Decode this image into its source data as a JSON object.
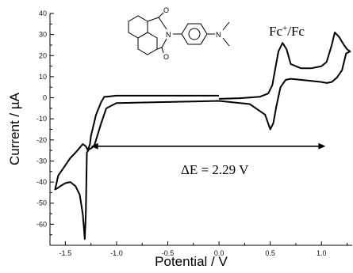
{
  "chart_data": {
    "type": "line",
    "xlabel": "Potential / V",
    "ylabel": "Current / µA",
    "xlim": [
      -1.65,
      1.3
    ],
    "ylim": [
      -70,
      40
    ],
    "xticks": [
      -1.5,
      -1.0,
      -0.5,
      0.0,
      0.5,
      1.0
    ],
    "xtick_labels": [
      "-1.5",
      "-1.0",
      "-0.5",
      "0.0",
      "0.5",
      "1.0"
    ],
    "yticks": [
      -60,
      -50,
      -40,
      -30,
      -20,
      -10,
      0,
      10,
      20,
      30,
      40
    ],
    "ytick_labels": [
      "-60",
      "-50",
      "-40",
      "-30",
      "-20",
      "-10",
      "0",
      "10",
      "20",
      "30",
      "40"
    ],
    "grid": false,
    "series": [
      {
        "x": [
          0.0,
          0.2,
          0.4,
          0.48,
          0.52,
          0.55,
          0.58,
          0.62,
          0.66,
          0.7,
          0.8,
          0.9,
          1.0,
          1.05,
          1.1,
          1.13,
          1.17,
          1.22,
          1.25,
          1.28,
          1.24,
          1.2,
          1.15,
          1.1,
          1.05,
          1.0,
          0.9,
          0.8,
          0.7,
          0.65,
          0.6,
          0.56,
          0.53,
          0.5,
          0.45,
          0.3,
          0.0,
          -0.5,
          -1.0,
          -1.1,
          -1.15,
          -1.2,
          -1.22,
          -1.25,
          -1.27,
          -1.29,
          -1.3,
          -1.31,
          -1.33,
          -1.36,
          -1.4,
          -1.45,
          -1.5,
          -1.55,
          -1.58,
          -1.6,
          -1.57,
          -1.5,
          -1.45,
          -1.4,
          -1.33,
          -1.3,
          -1.28,
          -1.26,
          -1.25,
          -1.2,
          -1.15,
          -1.12,
          -1.1,
          -1.0,
          -0.5,
          0.0
        ],
        "y": [
          -0.5,
          -0.2,
          0.5,
          2,
          6,
          14,
          22,
          26,
          23,
          16,
          14,
          14,
          15,
          17,
          25,
          31,
          29,
          25,
          23,
          22,
          21,
          13,
          9.5,
          7.5,
          7,
          7.5,
          8,
          8.5,
          9,
          8.5,
          5,
          -4,
          -12,
          -15,
          -8,
          -3,
          -1.5,
          -2,
          -2.5,
          -5,
          -12,
          -20,
          -23,
          -24,
          -24.5,
          -26,
          -55,
          -67,
          -55,
          -46,
          -42,
          -40,
          -40.5,
          -42,
          -43,
          -43.5,
          -37,
          -32,
          -28.5,
          -26,
          -22,
          -23,
          -25,
          -22,
          -18,
          -8,
          -2,
          0.5,
          0.5,
          1,
          1,
          1
        ]
      }
    ],
    "annotations": {
      "delta_e_label": "ΔE = 2.29 V",
      "delta_e_arrow_x": [
        -1.25,
        1.04
      ],
      "delta_e_arrow_y": -23,
      "fc_label_base": "Fc",
      "fc_label_sup": "+",
      "fc_label_rest": "/Fc"
    },
    "structure_atoms": [
      "O",
      "O",
      "N",
      "N"
    ]
  }
}
